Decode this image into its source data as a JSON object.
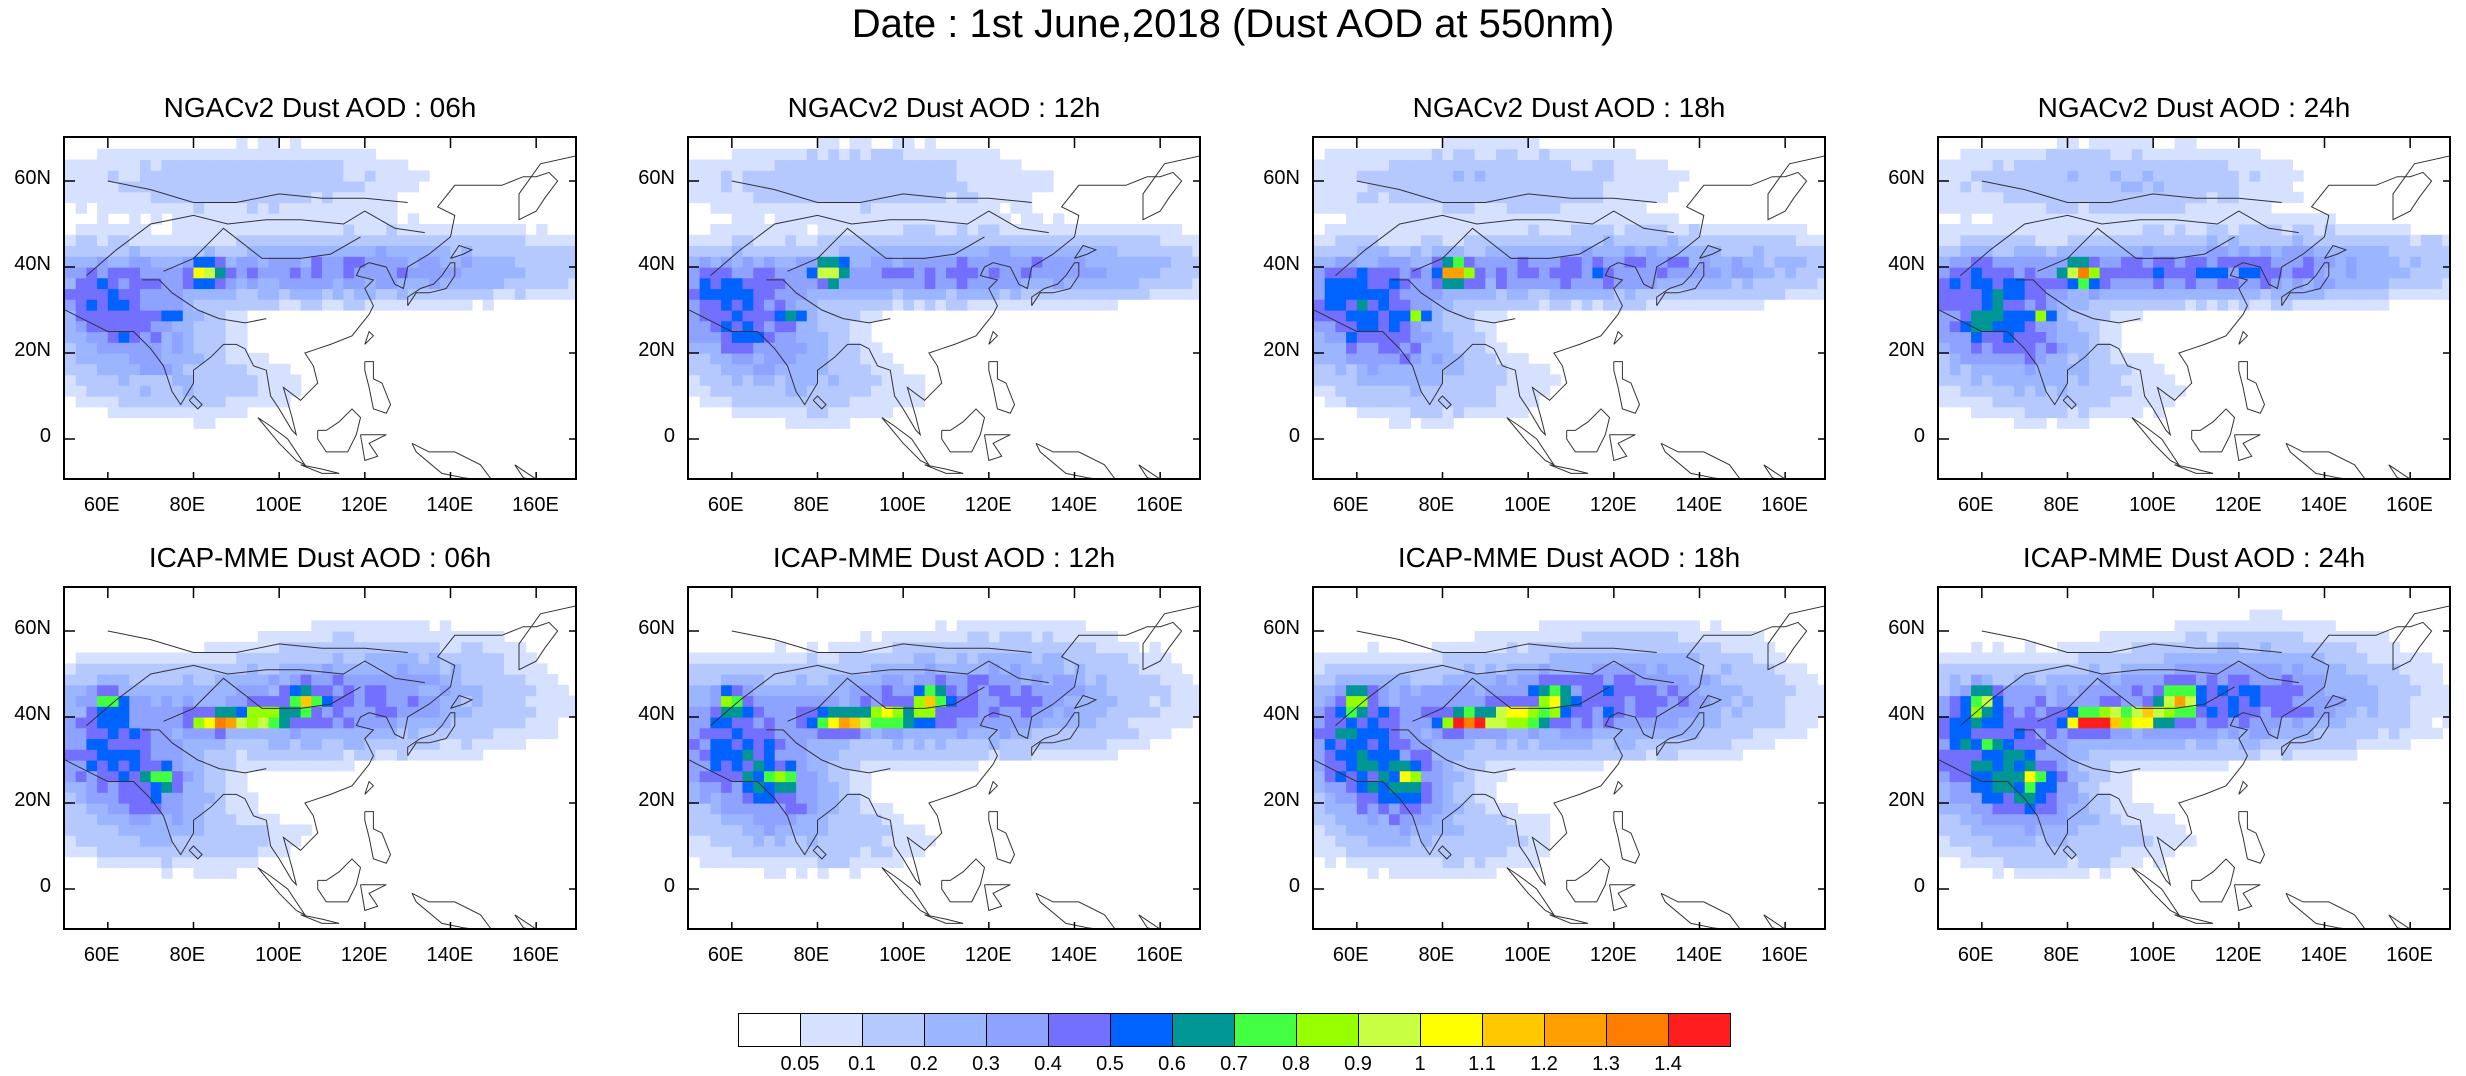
{
  "title": "Date : 1st June,2018 (Dust AOD at 550nm)",
  "panels": [
    {
      "title": "NGACv2 Dust AOD : 06h",
      "model": "NGACv2",
      "hour": "06h"
    },
    {
      "title": "NGACv2 Dust AOD : 12h",
      "model": "NGACv2",
      "hour": "12h"
    },
    {
      "title": "NGACv2 Dust AOD : 18h",
      "model": "NGACv2",
      "hour": "18h"
    },
    {
      "title": "NGACv2 Dust AOD : 24h",
      "model": "NGACv2",
      "hour": "24h"
    },
    {
      "title": "ICAP-MME Dust AOD : 06h",
      "model": "ICAP-MME",
      "hour": "06h"
    },
    {
      "title": "ICAP-MME Dust AOD : 12h",
      "model": "ICAP-MME",
      "hour": "12h"
    },
    {
      "title": "ICAP-MME Dust AOD : 18h",
      "model": "ICAP-MME",
      "hour": "18h"
    },
    {
      "title": "ICAP-MME Dust AOD : 24h",
      "model": "ICAP-MME",
      "hour": "24h"
    }
  ],
  "lat_ticks": [
    "60N",
    "40N",
    "20N",
    "0"
  ],
  "lon_ticks": [
    "60E",
    "80E",
    "100E",
    "120E",
    "140E",
    "160E"
  ],
  "colorbar": {
    "labels": [
      "0.05",
      "0.1",
      "0.2",
      "0.3",
      "0.4",
      "0.5",
      "0.6",
      "0.7",
      "0.8",
      "0.9",
      "1",
      "1.1",
      "1.2",
      "1.3",
      "1.4"
    ],
    "colors": [
      "#ffffff",
      "#d6e1ff",
      "#b5c9ff",
      "#9cb5ff",
      "#8ea2ff",
      "#7370ff",
      "#0063ff",
      "#009696",
      "#42ff42",
      "#96ff00",
      "#c8ff42",
      "#ffff00",
      "#ffc800",
      "#ffa000",
      "#ff7d00",
      "#ff1e1e"
    ]
  }
}
